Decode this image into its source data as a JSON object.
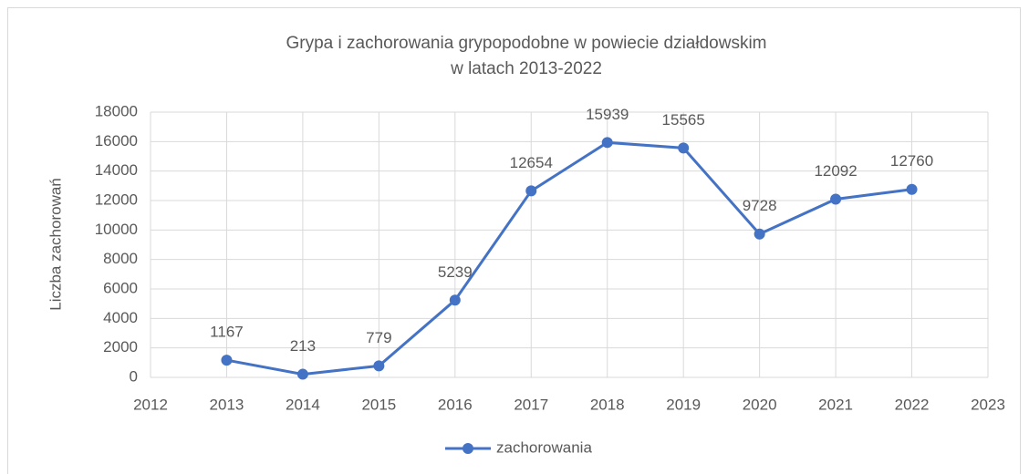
{
  "chart_data": {
    "type": "line",
    "title": [
      "Grypa i zachorowania grypopodobne w powiecie działdowskim",
      "w latach 2013-2022"
    ],
    "y_label": "Liczba zachorowań",
    "x": [
      2013,
      2014,
      2015,
      2016,
      2017,
      2018,
      2019,
      2020,
      2021,
      2022
    ],
    "series": [
      {
        "name": "zachorowania",
        "color": "#4472c4",
        "values": [
          1167,
          213,
          779,
          5239,
          12654,
          15939,
          15565,
          9728,
          12092,
          12760
        ]
      }
    ],
    "xlim": [
      2012,
      2023
    ],
    "xticks": [
      2012,
      2013,
      2014,
      2015,
      2016,
      2017,
      2018,
      2019,
      2020,
      2021,
      2022,
      2023
    ],
    "ylim": [
      0,
      18000
    ],
    "yticks": [
      0,
      2000,
      4000,
      6000,
      8000,
      10000,
      12000,
      14000,
      16000,
      18000
    ],
    "grid": true,
    "legend": "bottom"
  }
}
